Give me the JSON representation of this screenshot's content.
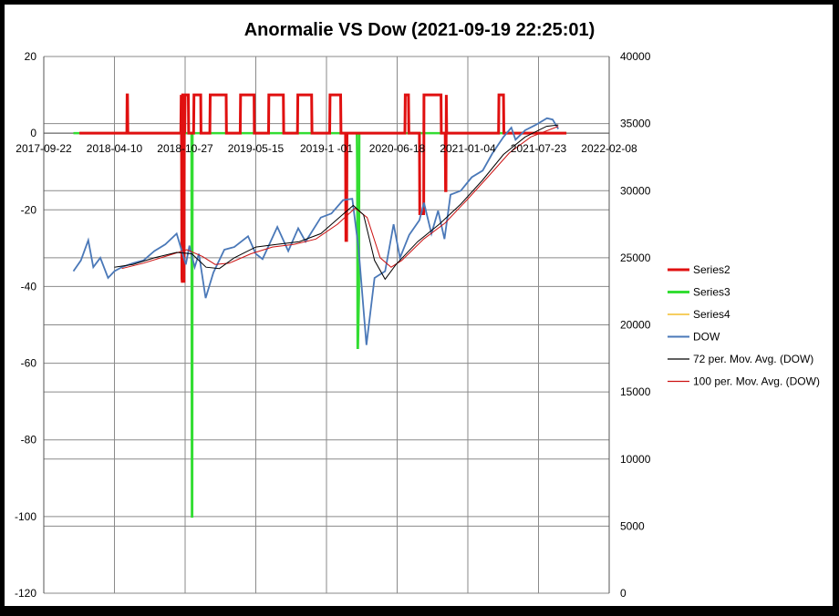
{
  "chart_data": {
    "type": "line",
    "title": "Anormalie VS Dow (2021-09-19  22:25:01)",
    "x_tick_labels": [
      "2017-09-22",
      "2018-04-10",
      "2018-10-27",
      "2019-05-15",
      "2019-1 -01",
      "2020-06-18",
      "2021-01-04",
      "2021-07-23",
      "2022-02-08"
    ],
    "x_range": [
      "2017-09-22",
      "2022-02-08"
    ],
    "y_left": {
      "range": [
        -120,
        20
      ],
      "ticks": [
        20,
        0,
        -20,
        -40,
        -60,
        -80,
        -100,
        -120
      ]
    },
    "y_right": {
      "range": [
        0,
        40000
      ],
      "ticks": [
        40000,
        35000,
        30000,
        25000,
        20000,
        15000,
        10000,
        5000,
        0
      ]
    },
    "grid": true,
    "legend_position": "right",
    "series": [
      {
        "name": "Series2",
        "color": "#e01010",
        "axis": "left",
        "style": "step",
        "x": [
          "2018-01-01",
          "2018-05-15",
          "2018-05-16",
          "2018-05-17",
          "2018-05-18",
          "2018-10-15",
          "2018-10-16",
          "2018-10-17",
          "2018-10-18",
          "2018-10-19",
          "2018-10-20",
          "2018-10-23",
          "2018-10-24",
          "2018-10-25",
          "2018-10-26",
          "2018-10-27",
          "2018-11-05",
          "2018-11-06",
          "2018-11-20",
          "2018-11-21",
          "2018-12-10",
          "2018-12-11",
          "2019-01-05",
          "2019-01-06",
          "2019-02-20",
          "2019-02-21",
          "2019-04-01",
          "2019-04-02",
          "2019-05-10",
          "2019-05-11",
          "2019-06-20",
          "2019-06-21",
          "2019-08-01",
          "2019-08-02",
          "2019-09-10",
          "2019-09-11",
          "2019-10-20",
          "2019-10-21",
          "2019-12-10",
          "2019-12-11",
          "2020-01-05",
          "2020-01-10",
          "2020-01-11",
          "2020-01-24",
          "2020-01-25",
          "2020-01-26",
          "2020-01-27",
          "2020-01-28",
          "2020-01-29",
          "2020-07-10",
          "2020-07-11",
          "2020-07-20",
          "2020-07-21",
          "2020-08-20",
          "2020-08-21",
          "2020-09-01",
          "2020-09-02",
          "2020-10-20",
          "2020-10-21",
          "2020-11-01",
          "2020-11-02",
          "2020-11-03",
          "2020-11-04",
          "2020-11-05",
          "2021-04-01",
          "2021-04-02",
          "2021-04-15",
          "2021-04-16",
          "2021-10-10"
        ],
        "values": [
          0,
          0,
          10,
          10,
          0,
          0,
          10,
          -5,
          -38,
          -39,
          10,
          10,
          -39,
          10,
          0,
          10,
          10,
          0,
          0,
          10,
          10,
          0,
          0,
          10,
          10,
          0,
          0,
          10,
          10,
          0,
          0,
          10,
          10,
          0,
          0,
          10,
          10,
          0,
          0,
          10,
          10,
          10,
          0,
          0,
          -28,
          -28,
          -28,
          0,
          0,
          0,
          10,
          10,
          0,
          0,
          -21,
          -21,
          10,
          10,
          0,
          0,
          -15,
          -15,
          10,
          0,
          0,
          10,
          10,
          0,
          0
        ]
      },
      {
        "name": "Series3",
        "color": "#33dd33",
        "axis": "left",
        "x": [
          "2017-12-15",
          "2018-11-14",
          "2018-11-15",
          "2018-11-16",
          "2018-11-17",
          "2020-02-25",
          "2020-02-26",
          "2020-02-27",
          "2020-02-28",
          "2020-03-02",
          "2020-03-03",
          "2021-10-10"
        ],
        "values": [
          0,
          0,
          -100,
          -100,
          0,
          0,
          -10,
          -56,
          -56,
          -42,
          0,
          0
        ]
      },
      {
        "name": "Series4",
        "color": "#f0b000",
        "axis": "left",
        "x": [],
        "values": []
      },
      {
        "name": "DOW",
        "color": "#4a78b8",
        "axis": "right",
        "x": [
          "2017-12-15",
          "2018-01-05",
          "2018-01-26",
          "2018-02-09",
          "2018-03-01",
          "2018-03-23",
          "2018-04-10",
          "2018-05-01",
          "2018-06-01",
          "2018-07-01",
          "2018-08-01",
          "2018-09-01",
          "2018-10-03",
          "2018-10-29",
          "2018-11-08",
          "2018-11-23",
          "2018-12-05",
          "2018-12-24",
          "2019-01-15",
          "2019-02-15",
          "2019-03-15",
          "2019-04-23",
          "2019-05-15",
          "2019-06-03",
          "2019-07-15",
          "2019-08-15",
          "2019-09-12",
          "2019-10-03",
          "2019-11-15",
          "2019-12-15",
          "2020-01-17",
          "2020-02-12",
          "2020-03-01",
          "2020-03-23",
          "2020-04-15",
          "2020-05-15",
          "2020-06-08",
          "2020-06-26",
          "2020-07-22",
          "2020-08-20",
          "2020-09-02",
          "2020-09-23",
          "2020-10-12",
          "2020-10-30",
          "2020-11-16",
          "2020-12-15",
          "2021-01-15",
          "2021-02-15",
          "2021-03-15",
          "2021-04-15",
          "2021-05-07",
          "2021-05-19",
          "2021-06-15",
          "2021-07-15",
          "2021-08-16",
          "2021-09-01",
          "2021-09-17"
        ],
        "values": [
          24000,
          24800,
          26300,
          24300,
          25000,
          23500,
          24000,
          24300,
          24600,
          24800,
          25500,
          26000,
          26800,
          24500,
          25900,
          24300,
          25300,
          22000,
          23900,
          25600,
          25800,
          26600,
          25300,
          24900,
          27300,
          25500,
          27200,
          26200,
          28000,
          28300,
          29300,
          29400,
          25600,
          18500,
          23500,
          24000,
          27500,
          25000,
          26700,
          27800,
          29100,
          26800,
          28500,
          26400,
          29700,
          30000,
          31000,
          31500,
          32800,
          34000,
          34700,
          33800,
          34500,
          34900,
          35400,
          35300,
          34600
        ]
      },
      {
        "name": "72 per. Mov. Avg. (DOW)",
        "color": "#000000",
        "axis": "right",
        "x": [
          "2018-04-10",
          "2018-06-01",
          "2018-08-01",
          "2018-10-03",
          "2018-11-15",
          "2018-12-25",
          "2019-02-01",
          "2019-03-15",
          "2019-05-15",
          "2019-07-15",
          "2019-09-15",
          "2019-11-15",
          "2020-01-15",
          "2020-02-15",
          "2020-03-15",
          "2020-04-15",
          "2020-05-15",
          "2020-06-15",
          "2020-08-15",
          "2020-10-15",
          "2020-12-15",
          "2021-02-15",
          "2021-04-15",
          "2021-06-15",
          "2021-08-15",
          "2021-09-17"
        ],
        "values": [
          24300,
          24500,
          25000,
          25400,
          25300,
          24300,
          24200,
          25000,
          25800,
          26000,
          26200,
          26800,
          28200,
          28900,
          28200,
          24800,
          23400,
          24500,
          26200,
          27500,
          29000,
          30800,
          32700,
          34000,
          34800,
          34900
        ]
      },
      {
        "name": "100 per. Mov. Avg. (DOW)",
        "color": "#cc1111",
        "axis": "right",
        "x": [
          "2018-05-01",
          "2018-07-01",
          "2018-09-01",
          "2018-11-01",
          "2018-12-15",
          "2019-01-20",
          "2019-03-01",
          "2019-05-01",
          "2019-07-01",
          "2019-09-01",
          "2019-11-01",
          "2020-01-01",
          "2020-02-20",
          "2020-03-25",
          "2020-05-01",
          "2020-06-01",
          "2020-07-01",
          "2020-09-01",
          "2020-11-01",
          "2021-01-01",
          "2021-03-01",
          "2021-05-01",
          "2021-07-01",
          "2021-09-17"
        ],
        "values": [
          24200,
          24600,
          25100,
          25600,
          25100,
          24500,
          24600,
          25300,
          25800,
          26000,
          26400,
          27500,
          28700,
          28000,
          25000,
          24300,
          24800,
          26400,
          27600,
          29300,
          31000,
          32800,
          34000,
          34800
        ]
      }
    ]
  }
}
